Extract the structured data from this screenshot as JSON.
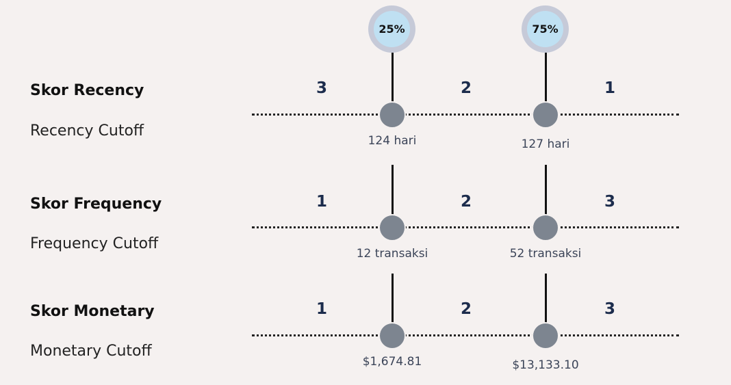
{
  "percentiles": [
    "25%",
    "75%"
  ],
  "rows": [
    {
      "score_label": "Skor Recency",
      "cutoff_label": "Recency Cutoff",
      "scores": [
        "3",
        "2",
        "1"
      ],
      "cutoffs": [
        "124 hari",
        "127 hari"
      ]
    },
    {
      "score_label": "Skor Frequency",
      "cutoff_label": "Frequency Cutoff",
      "scores": [
        "1",
        "2",
        "3"
      ],
      "cutoffs": [
        "12 transaksi",
        "52 transaksi"
      ]
    },
    {
      "score_label": "Skor Monetary",
      "cutoff_label": "Monetary Cutoff",
      "scores": [
        "1",
        "2",
        "3"
      ],
      "cutoffs": [
        "$1,674.81",
        "$13,133.10"
      ]
    }
  ],
  "colors": {
    "background": "#f5f1f0",
    "node": "#7d8590",
    "score_text": "#1c2c4c",
    "percentile_ring": "#c6cad8",
    "percentile_fill": "#bfe0f2"
  }
}
